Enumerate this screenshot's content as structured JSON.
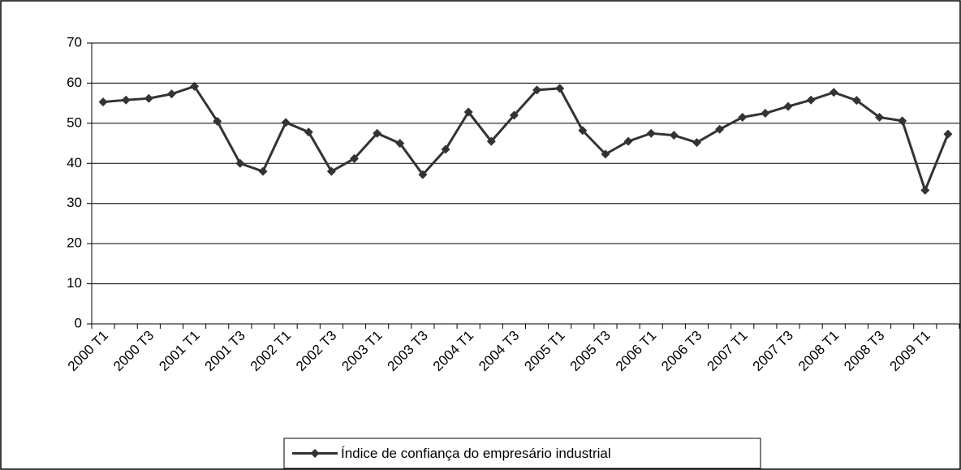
{
  "chart_data": {
    "type": "line",
    "categories": [
      "2000 T1",
      null,
      "2000 T3",
      null,
      "2001 T1",
      null,
      "2001 T3",
      null,
      "2002 T1",
      null,
      "2002 T3",
      null,
      "2003 T1",
      null,
      "2003 T3",
      null,
      "2004 T1",
      null,
      "2004 T3",
      null,
      "2005 T1",
      null,
      "2005 T3",
      null,
      "2006 T1",
      null,
      "2006 T3",
      null,
      "2007 T1",
      null,
      "2007 T3",
      null,
      "2008 T1",
      null,
      "2008 T3",
      null,
      "2009 T1",
      null
    ],
    "series": [
      {
        "name": "Índice de confiança do empresário industrial",
        "color": "#333333",
        "values": [
          55.3,
          55.8,
          56.2,
          57.3,
          59.2,
          50.5,
          40,
          38,
          50.2,
          47.8,
          38,
          41.2,
          47.5,
          45,
          37.2,
          43.5,
          52.8,
          45.5,
          52,
          58.3,
          58.7,
          48.2,
          42.3,
          45.5,
          47.5,
          47,
          45.2,
          48.5,
          51.5,
          52.5,
          54.2,
          55.8,
          57.7,
          55.7,
          51.5,
          50.6,
          33.3,
          47.3
        ]
      }
    ],
    "ylim": [
      0,
      70
    ],
    "yticks": [
      0,
      10,
      20,
      30,
      40,
      50,
      60,
      70
    ],
    "grid": true,
    "legend": "bottom"
  }
}
